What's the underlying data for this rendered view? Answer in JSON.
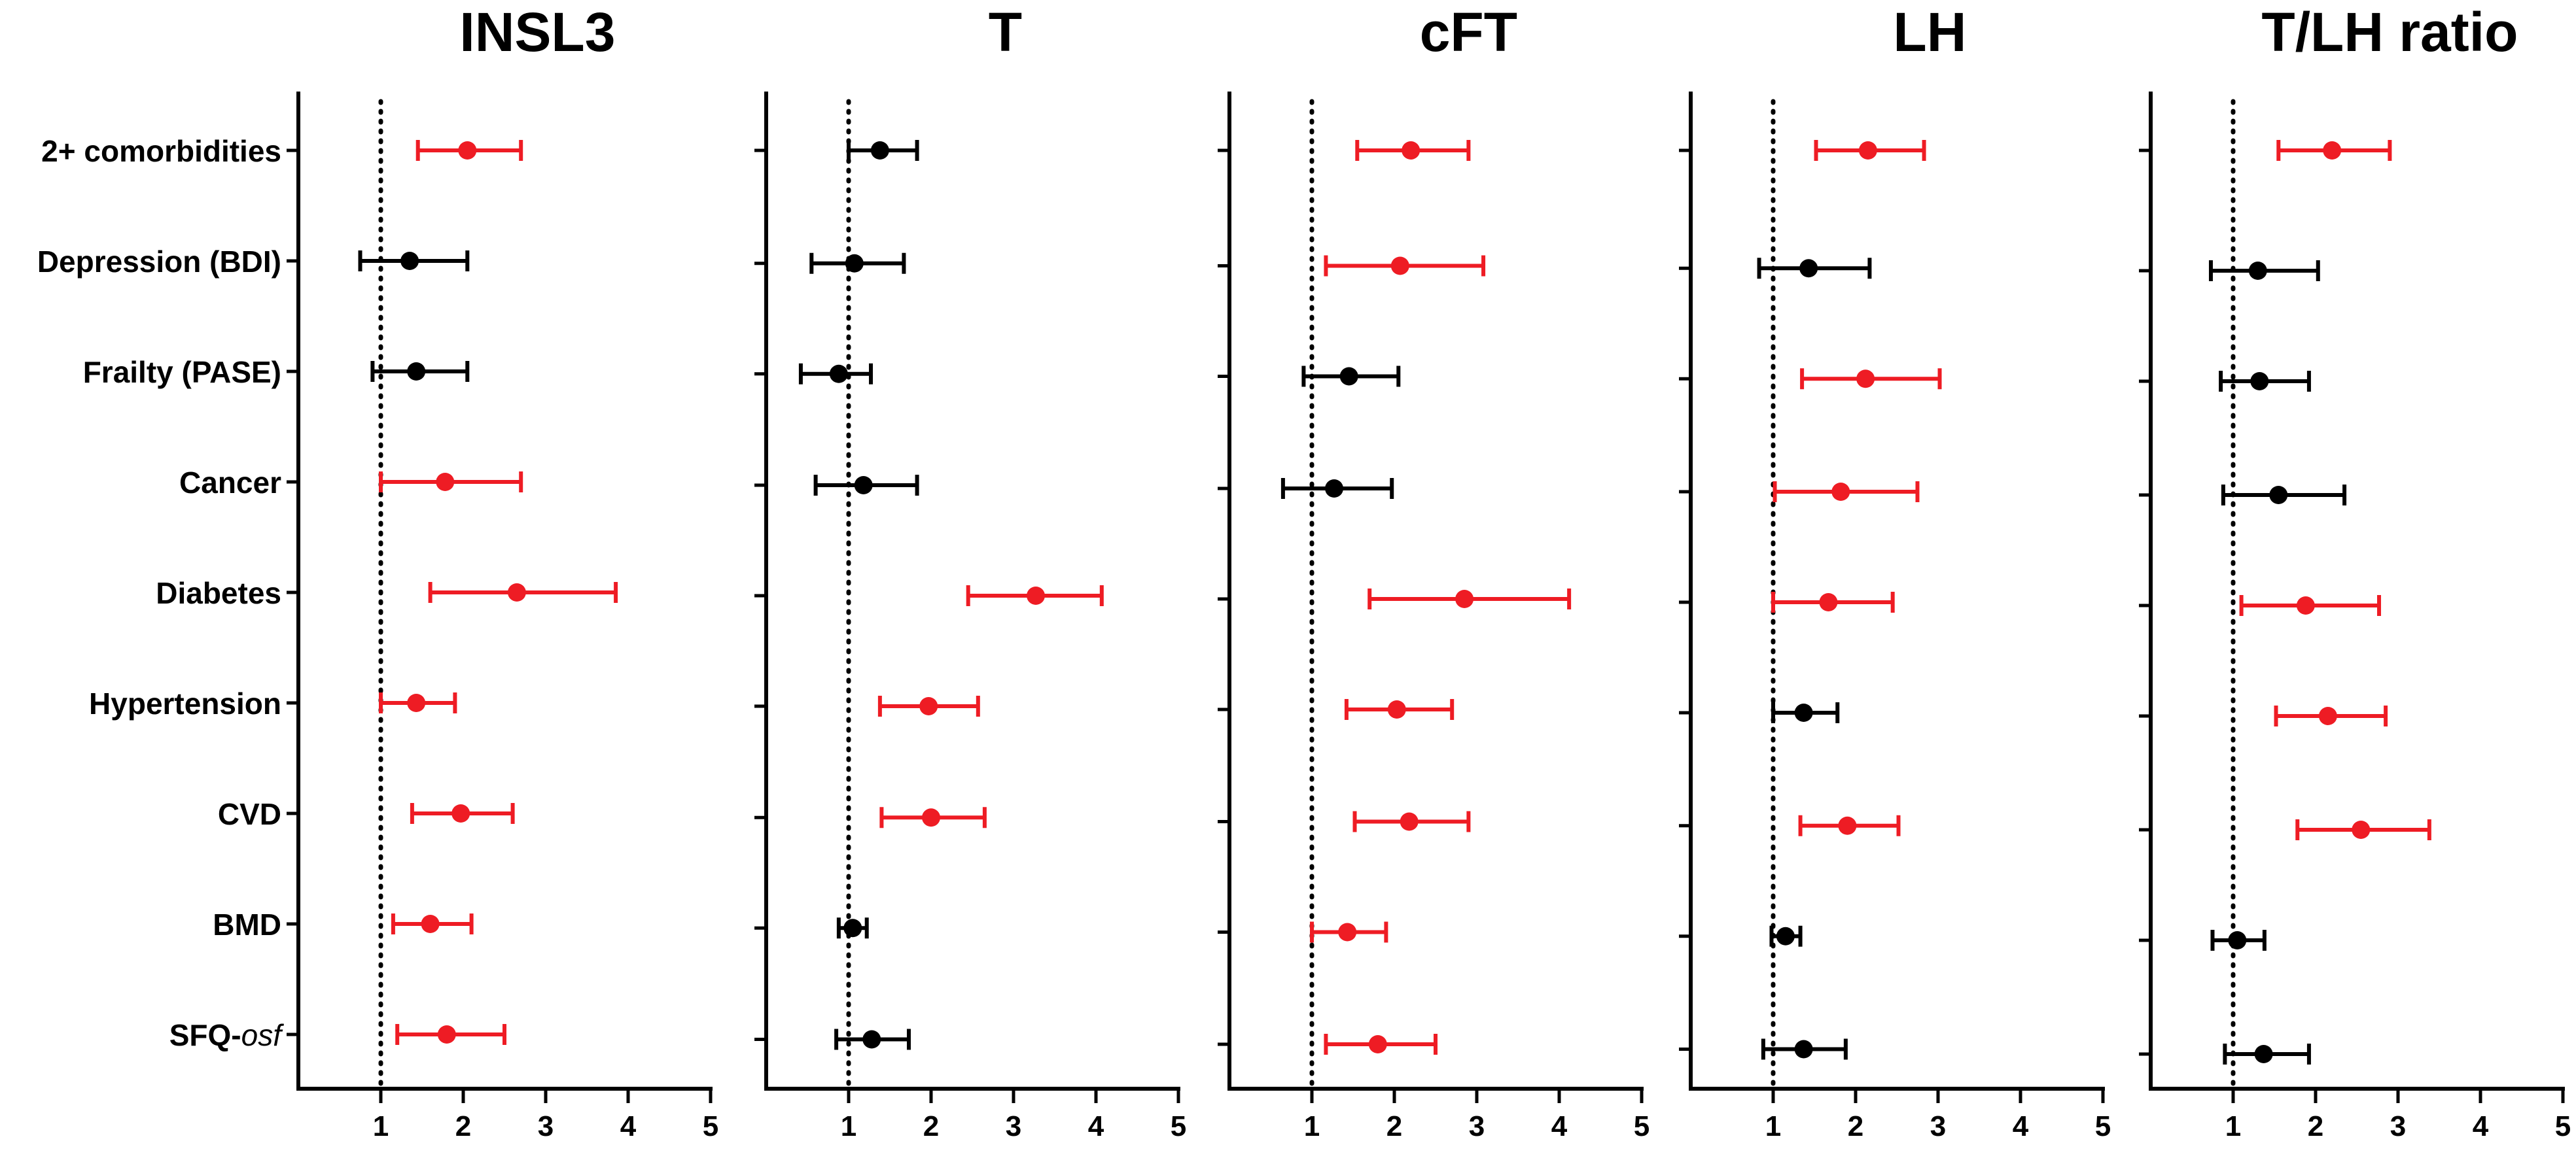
{
  "chart_data": {
    "type": "forest",
    "description_units": "odds ratio",
    "categories": [
      "2+ comorbidities",
      "Depression (BDI)",
      "Frailty (PASE)",
      "Cancer",
      "Diabetes",
      "Hypertension",
      "CVD",
      "BMD",
      "SFQ-osf"
    ],
    "category_label_parts": {
      "SFQ-osf": {
        "prefix": "SFQ-",
        "italic": "osf"
      }
    },
    "x_ticks": [
      1,
      2,
      3,
      4,
      5
    ],
    "xlim": [
      0,
      5
    ],
    "reference_line": 1,
    "colors": {
      "significant": "#ee1c24",
      "not_significant": "#000000"
    },
    "panels": [
      {
        "title": "INSL3",
        "rows": [
          {
            "category": "2+ comorbidities",
            "estimate": 2.05,
            "lower": 1.45,
            "upper": 2.7,
            "significant": true
          },
          {
            "category": "Depression (BDI)",
            "estimate": 1.35,
            "lower": 0.75,
            "upper": 2.05,
            "significant": false
          },
          {
            "category": "Frailty (PASE)",
            "estimate": 1.43,
            "lower": 0.9,
            "upper": 2.05,
            "significant": false
          },
          {
            "category": "Cancer",
            "estimate": 1.78,
            "lower": 1.0,
            "upper": 2.7,
            "significant": true
          },
          {
            "category": "Diabetes",
            "estimate": 2.65,
            "lower": 1.6,
            "upper": 3.85,
            "significant": true
          },
          {
            "category": "Hypertension",
            "estimate": 1.43,
            "lower": 1.0,
            "upper": 1.9,
            "significant": true
          },
          {
            "category": "CVD",
            "estimate": 1.97,
            "lower": 1.38,
            "upper": 2.6,
            "significant": true
          },
          {
            "category": "BMD",
            "estimate": 1.6,
            "lower": 1.15,
            "upper": 2.1,
            "significant": true
          },
          {
            "category": "SFQ-osf",
            "estimate": 1.8,
            "lower": 1.2,
            "upper": 2.5,
            "significant": true
          }
        ]
      },
      {
        "title": "T",
        "rows": [
          {
            "category": "2+ comorbidities",
            "estimate": 1.38,
            "lower": 1.0,
            "upper": 1.83,
            "significant": false
          },
          {
            "category": "Depression (BDI)",
            "estimate": 1.07,
            "lower": 0.55,
            "upper": 1.67,
            "significant": false
          },
          {
            "category": "Frailty (PASE)",
            "estimate": 0.88,
            "lower": 0.42,
            "upper": 1.27,
            "significant": false
          },
          {
            "category": "Cancer",
            "estimate": 1.18,
            "lower": 0.6,
            "upper": 1.83,
            "significant": false
          },
          {
            "category": "Diabetes",
            "estimate": 3.27,
            "lower": 2.45,
            "upper": 4.07,
            "significant": true
          },
          {
            "category": "Hypertension",
            "estimate": 1.97,
            "lower": 1.38,
            "upper": 2.57,
            "significant": true
          },
          {
            "category": "CVD",
            "estimate": 2.0,
            "lower": 1.4,
            "upper": 2.65,
            "significant": true
          },
          {
            "category": "BMD",
            "estimate": 1.05,
            "lower": 0.88,
            "upper": 1.22,
            "significant": false
          },
          {
            "category": "SFQ-osf",
            "estimate": 1.28,
            "lower": 0.85,
            "upper": 1.73,
            "significant": false
          }
        ]
      },
      {
        "title": "cFT",
        "rows": [
          {
            "category": "2+ comorbidities",
            "estimate": 2.2,
            "lower": 1.55,
            "upper": 2.9,
            "significant": true
          },
          {
            "category": "Depression (BDI)",
            "estimate": 2.07,
            "lower": 1.17,
            "upper": 3.08,
            "significant": true
          },
          {
            "category": "Frailty (PASE)",
            "estimate": 1.45,
            "lower": 0.9,
            "upper": 2.05,
            "significant": false
          },
          {
            "category": "Cancer",
            "estimate": 1.27,
            "lower": 0.65,
            "upper": 1.97,
            "significant": false
          },
          {
            "category": "Diabetes",
            "estimate": 2.85,
            "lower": 1.7,
            "upper": 4.12,
            "significant": true
          },
          {
            "category": "Hypertension",
            "estimate": 2.03,
            "lower": 1.42,
            "upper": 2.7,
            "significant": true
          },
          {
            "category": "CVD",
            "estimate": 2.18,
            "lower": 1.52,
            "upper": 2.9,
            "significant": true
          },
          {
            "category": "BMD",
            "estimate": 1.43,
            "lower": 1.0,
            "upper": 1.9,
            "significant": true
          },
          {
            "category": "SFQ-osf",
            "estimate": 1.8,
            "lower": 1.17,
            "upper": 2.5,
            "significant": true
          }
        ]
      },
      {
        "title": "LH",
        "rows": [
          {
            "category": "2+ comorbidities",
            "estimate": 2.15,
            "lower": 1.52,
            "upper": 2.83,
            "significant": true
          },
          {
            "category": "Depression (BDI)",
            "estimate": 1.43,
            "lower": 0.83,
            "upper": 2.17,
            "significant": false
          },
          {
            "category": "Frailty (PASE)",
            "estimate": 2.12,
            "lower": 1.35,
            "upper": 3.02,
            "significant": true
          },
          {
            "category": "Cancer",
            "estimate": 1.82,
            "lower": 1.02,
            "upper": 2.75,
            "significant": true
          },
          {
            "category": "Diabetes",
            "estimate": 1.67,
            "lower": 1.0,
            "upper": 2.45,
            "significant": true
          },
          {
            "category": "Hypertension",
            "estimate": 1.37,
            "lower": 1.0,
            "upper": 1.78,
            "significant": false
          },
          {
            "category": "CVD",
            "estimate": 1.9,
            "lower": 1.33,
            "upper": 2.52,
            "significant": true
          },
          {
            "category": "BMD",
            "estimate": 1.15,
            "lower": 0.98,
            "upper": 1.33,
            "significant": false
          },
          {
            "category": "SFQ-osf",
            "estimate": 1.37,
            "lower": 0.88,
            "upper": 1.88,
            "significant": false
          }
        ]
      },
      {
        "title": "T/LH ratio",
        "rows": [
          {
            "category": "2+ comorbidities",
            "estimate": 2.2,
            "lower": 1.55,
            "upper": 2.9,
            "significant": true
          },
          {
            "category": "Depression (BDI)",
            "estimate": 1.3,
            "lower": 0.73,
            "upper": 2.03,
            "significant": false
          },
          {
            "category": "Frailty (PASE)",
            "estimate": 1.32,
            "lower": 0.85,
            "upper": 1.92,
            "significant": false
          },
          {
            "category": "Cancer",
            "estimate": 1.55,
            "lower": 0.88,
            "upper": 2.35,
            "significant": false
          },
          {
            "category": "Diabetes",
            "estimate": 1.88,
            "lower": 1.1,
            "upper": 2.77,
            "significant": true
          },
          {
            "category": "Hypertension",
            "estimate": 2.15,
            "lower": 1.52,
            "upper": 2.85,
            "significant": true
          },
          {
            "category": "CVD",
            "estimate": 2.55,
            "lower": 1.78,
            "upper": 3.38,
            "significant": true
          },
          {
            "category": "BMD",
            "estimate": 1.05,
            "lower": 0.75,
            "upper": 1.38,
            "significant": false
          },
          {
            "category": "SFQ-osf",
            "estimate": 1.37,
            "lower": 0.9,
            "upper": 1.92,
            "significant": false
          }
        ]
      }
    ]
  }
}
